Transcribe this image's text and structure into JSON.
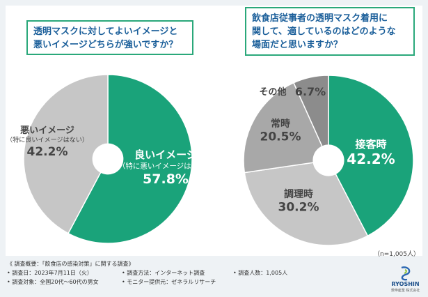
{
  "colors": {
    "green": "#1aa37a",
    "gray": "#c6c6c6",
    "mid_gray": "#a8a8a8",
    "dark_gray": "#8c8c8c",
    "accent_text": "#1b5f9a"
  },
  "question1": {
    "line1": "透明マスクに対してよいイメージと",
    "line2": "悪いイメージどちらが強いですか？"
  },
  "question2": {
    "line1": "飲食店従事者の透明マスク着用に",
    "line2": "関して、適しているのはどのような",
    "line3": "場面だと思いますか？"
  },
  "chart_data": [
    {
      "type": "pie",
      "title": "透明マスクに対してよいイメージと悪いイメージどちらが強いですか？",
      "slices": [
        {
          "label": "良いイメージ",
          "sublabel": "（特に悪いイメージはない）",
          "value": 57.8,
          "value_text": "57.8%",
          "color": "#1aa37a"
        },
        {
          "label": "悪いイメージ",
          "sublabel": "（特に良いイメージはない）",
          "value": 42.2,
          "value_text": "42.2%",
          "color": "#c6c6c6"
        }
      ]
    },
    {
      "type": "pie",
      "title": "飲食店従事者の透明マスク着用に関して、適しているのはどのような場面だと思いますか？",
      "slices": [
        {
          "label": "接客時",
          "value": 42.2,
          "value_text": "42.2%",
          "color": "#1aa37a"
        },
        {
          "label": "調理時",
          "value": 30.2,
          "value_text": "30.2%",
          "color": "#c6c6c6"
        },
        {
          "label": "常時",
          "value": 20.5,
          "value_text": "20.5%",
          "color": "#a8a8a8"
        },
        {
          "label": "その他",
          "value": 6.7,
          "value_text": "6.7%",
          "color": "#8c8c8c"
        }
      ]
    }
  ],
  "sample_size": "（n=1,005人）",
  "footer": {
    "summary": "《 調査概要：「飲食店の感染対策」に関する調査》",
    "date": "• 調査日：2023年7月11日（火）",
    "method": "• 調査方法：インターネット調査",
    "count": "• 調査人数：1,005人",
    "target": "• 調査対象：全国20代～60代の男女",
    "provider": "• モニター提供元：ゼネラルリサーチ"
  },
  "logo": {
    "name": "RYOSHIN",
    "sub": "菱伸産業 株式会社"
  }
}
